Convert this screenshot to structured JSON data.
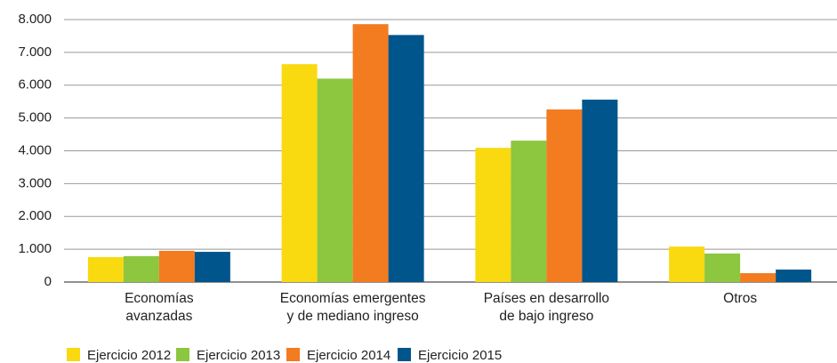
{
  "chart_data": {
    "type": "bar",
    "categories": [
      "Economías\navanzadas",
      "Economías emergentes\ny de mediano ingreso",
      "Países en desarrollo\nde bajo ingreso",
      "Otros"
    ],
    "series": [
      {
        "name": "Ejercicio 2012",
        "color": "#f9d90f",
        "values": [
          760,
          6640,
          4090,
          1080
        ]
      },
      {
        "name": "Ejercicio 2013",
        "color": "#8dc63f",
        "values": [
          790,
          6200,
          4310,
          870
        ]
      },
      {
        "name": "Ejercicio 2014",
        "color": "#f37b20",
        "values": [
          950,
          7860,
          5260,
          270
        ]
      },
      {
        "name": "Ejercicio 2015",
        "color": "#00558c",
        "values": [
          920,
          7530,
          5560,
          380
        ]
      }
    ],
    "ylim": [
      0,
      8000
    ],
    "yticks": [
      0,
      {
        "value": 1000,
        "label": "1.000"
      },
      {
        "value": 2000,
        "label": "2.000"
      },
      {
        "value": 3000,
        "label": "3.000"
      },
      {
        "value": 4000,
        "label": "4.000"
      },
      {
        "value": 5000,
        "label": "5.000"
      },
      {
        "value": 6000,
        "label": "6.000"
      },
      {
        "value": 7000,
        "label": "7.000"
      },
      {
        "value": 8000,
        "label": "8.000"
      }
    ],
    "grid": true,
    "legend": "bottom"
  }
}
